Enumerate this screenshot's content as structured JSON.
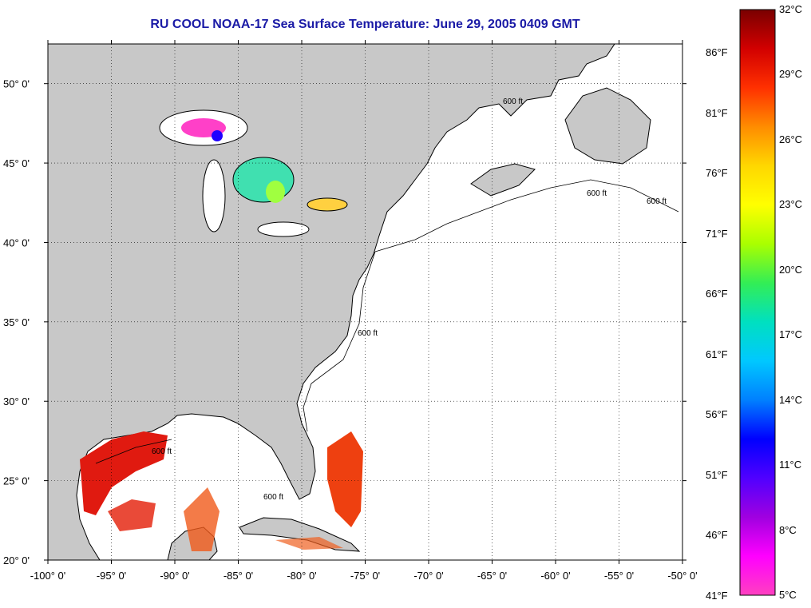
{
  "title": "RU COOL  NOAA-17  Sea Surface Temperature:  June 29, 2005 0409 GMT",
  "map": {
    "lon_range": [
      -100,
      -50
    ],
    "lat_range": [
      20,
      52.5
    ],
    "lon_ticks": [
      {
        "value": -100,
        "label": "-100° 0'"
      },
      {
        "value": -95,
        "label": "-95° 0'"
      },
      {
        "value": -90,
        "label": "-90° 0'"
      },
      {
        "value": -85,
        "label": "-85° 0'"
      },
      {
        "value": -80,
        "label": "-80° 0'"
      },
      {
        "value": -75,
        "label": "-75° 0'"
      },
      {
        "value": -70,
        "label": "-70° 0'"
      },
      {
        "value": -65,
        "label": "-65° 0'"
      },
      {
        "value": -60,
        "label": "-60° 0'"
      },
      {
        "value": -55,
        "label": "-55° 0'"
      },
      {
        "value": -50,
        "label": "-50° 0'"
      }
    ],
    "lat_ticks": [
      {
        "value": 20,
        "label": "20° 0'"
      },
      {
        "value": 25,
        "label": "25° 0'"
      },
      {
        "value": 30,
        "label": "30° 0'"
      },
      {
        "value": 35,
        "label": "35° 0'"
      },
      {
        "value": 40,
        "label": "40° 0'"
      },
      {
        "value": 45,
        "label": "45° 0'"
      },
      {
        "value": 50,
        "label": "50° 0'"
      }
    ],
    "contour_label": "600 ft",
    "colors": {
      "land": "#c8c8c8",
      "ocean": "#ffffff",
      "coast": "#000000",
      "grid": "#000000"
    }
  },
  "colorbar": {
    "celsius": [
      "32°C",
      "29°C",
      "26°C",
      "23°C",
      "20°C",
      "17°C",
      "14°C",
      "11°C",
      "8°C",
      "5°C"
    ],
    "fahrenheit": [
      "86°F",
      "81°F",
      "76°F",
      "71°F",
      "66°F",
      "61°F",
      "56°F",
      "51°F",
      "46°F",
      "41°F"
    ],
    "stops": [
      "#7a0000",
      "#d20000",
      "#ff3000",
      "#ff8c00",
      "#ffd700",
      "#ffff00",
      "#aaff00",
      "#33ee55",
      "#00e0c0",
      "#00c8ff",
      "#0080ff",
      "#0000ff",
      "#5000ff",
      "#a000e0",
      "#ff00ff",
      "#ff40c0"
    ]
  }
}
